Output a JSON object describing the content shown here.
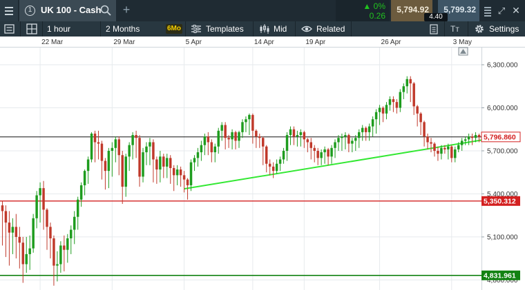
{
  "title_bar": {
    "instrument_name": "UK 100 - Cash",
    "info_icon": "1",
    "add_tab_icon": "+",
    "change_percent": "0%",
    "change_value": "0.26",
    "sell_price": "5,794.92",
    "buy_price": "5,799.32",
    "spread": "4.40",
    "expand_icon": "⤢",
    "close_icon": "✕"
  },
  "toolbar": {
    "interval": "1 hour",
    "range": "2 Months",
    "range_badge": "6Mo",
    "templates_label": "Templates",
    "price_type": "Mid",
    "related_label": "Related",
    "text_icon": "Tт",
    "settings_label": "Settings"
  },
  "colors": {
    "up_candle": "#1e9c1e",
    "down_candle": "#c0392b",
    "trendline": "#33e833",
    "resistance_line": "#d32020",
    "support_line": "#128212",
    "current_price_line": "#111111"
  },
  "chart_data": {
    "type": "candlestick",
    "x_tick_labels": [
      "22 Mar",
      "29 Mar",
      "5 Apr",
      "14 Apr",
      "19 Apr",
      "26 Apr",
      "3 May"
    ],
    "x_tick_index": [
      11,
      32,
      53,
      73,
      88,
      110,
      131
    ],
    "y_tick_labels": [
      "6,300.000",
      "6,000.000",
      "5,700.000",
      "5,400.000",
      "5,100.000",
      "4,800.000"
    ],
    "y_ticks": [
      6300,
      6000,
      5700,
      5400,
      5100,
      4800
    ],
    "ylim": [
      4730,
      6420
    ],
    "bar_count": 140,
    "closes": [
      5280,
      5200,
      5130,
      5170,
      5100,
      5060,
      4910,
      4980,
      5020,
      5230,
      5390,
      5440,
      5290,
      5170,
      5090,
      4900,
      4910,
      5040,
      5010,
      5090,
      5150,
      5240,
      5360,
      5460,
      5560,
      5640,
      5820,
      5760,
      5750,
      5630,
      5560,
      5700,
      5720,
      5780,
      5670,
      5450,
      5660,
      5740,
      5810,
      5790,
      5520,
      5690,
      5730,
      5760,
      5640,
      5570,
      5660,
      5590,
      5650,
      5580,
      5530,
      5570,
      5530,
      5500,
      5460,
      5620,
      5650,
      5690,
      5740,
      5800,
      5760,
      5690,
      5730,
      5840,
      5880,
      5790,
      5780,
      5830,
      5770,
      5830,
      5900,
      5920,
      5950,
      5840,
      5800,
      5790,
      5730,
      5610,
      5590,
      5560,
      5610,
      5640,
      5700,
      5810,
      5850,
      5800,
      5810,
      5830,
      5780,
      5760,
      5720,
      5700,
      5650,
      5690,
      5710,
      5660,
      5720,
      5760,
      5790,
      5800,
      5810,
      5750,
      5770,
      5790,
      5830,
      5860,
      5830,
      5870,
      5920,
      5970,
      6000,
      5960,
      6020,
      6060,
      6040,
      6000,
      6110,
      6150,
      6200,
      6170,
      6010,
      5960,
      5900,
      5800,
      5760,
      5750,
      5700,
      5680,
      5720,
      5710,
      5730,
      5650,
      5710,
      5740,
      5770,
      5780,
      5800,
      5790,
      5810,
      5797
    ],
    "lows": [
      5040,
      4960,
      4900,
      4980,
      4950,
      4880,
      4780,
      4850,
      4870,
      4990,
      5160,
      5200,
      5150,
      5010,
      4950,
      4760,
      4790,
      4850,
      4860,
      4920,
      4980,
      5050,
      5150,
      5310,
      5390,
      5470,
      5620,
      5620,
      5640,
      5500,
      5430,
      5440,
      5520,
      5620,
      5530,
      5330,
      5380,
      5560,
      5640,
      5650,
      5450,
      5480,
      5600,
      5600,
      5480,
      5470,
      5480,
      5510,
      5510,
      5470,
      5420,
      5460,
      5450,
      5410,
      5360,
      5420,
      5560,
      5590,
      5630,
      5670,
      5670,
      5620,
      5620,
      5680,
      5770,
      5710,
      5720,
      5710,
      5710,
      5720,
      5790,
      5830,
      5810,
      5750,
      5720,
      5720,
      5600,
      5550,
      5530,
      5510,
      5540,
      5560,
      5610,
      5630,
      5740,
      5740,
      5730,
      5730,
      5720,
      5690,
      5640,
      5620,
      5600,
      5600,
      5610,
      5600,
      5610,
      5650,
      5700,
      5700,
      5710,
      5690,
      5690,
      5700,
      5720,
      5770,
      5770,
      5770,
      5800,
      5820,
      5880,
      5900,
      5920,
      5980,
      5970,
      5960,
      5970,
      6060,
      6100,
      6040,
      5950,
      5870,
      5810,
      5730,
      5710,
      5690,
      5660,
      5630,
      5640,
      5680,
      5640,
      5620,
      5620,
      5690,
      5700,
      5740,
      5740,
      5740,
      5760,
      5760
    ],
    "highs": [
      5350,
      5320,
      5280,
      5230,
      5260,
      5170,
      5100,
      5100,
      5110,
      5260,
      5420,
      5480,
      5490,
      5300,
      5200,
      5110,
      5000,
      5070,
      5110,
      5120,
      5180,
      5280,
      5380,
      5480,
      5570,
      5660,
      5830,
      5840,
      5840,
      5770,
      5650,
      5720,
      5760,
      5800,
      5800,
      5700,
      5680,
      5760,
      5830,
      5840,
      5810,
      5720,
      5760,
      5790,
      5780,
      5660,
      5700,
      5680,
      5680,
      5670,
      5600,
      5600,
      5590,
      5560,
      5510,
      5640,
      5670,
      5720,
      5770,
      5820,
      5830,
      5780,
      5750,
      5860,
      5900,
      5900,
      5810,
      5850,
      5840,
      5840,
      5920,
      5940,
      5960,
      5960,
      5850,
      5820,
      5800,
      5740,
      5640,
      5620,
      5640,
      5660,
      5720,
      5830,
      5870,
      5870,
      5840,
      5850,
      5840,
      5790,
      5790,
      5740,
      5720,
      5710,
      5730,
      5720,
      5740,
      5780,
      5810,
      5820,
      5830,
      5820,
      5790,
      5810,
      5850,
      5880,
      5870,
      5890,
      5940,
      5990,
      6020,
      6010,
      6040,
      6080,
      6080,
      6060,
      6130,
      6170,
      6220,
      6220,
      6180,
      6020,
      5970,
      5910,
      5820,
      5790,
      5760,
      5730,
      5740,
      5740,
      5750,
      5740,
      5730,
      5760,
      5790,
      5800,
      5820,
      5820,
      5830,
      5820
    ],
    "current_price": 5796.86,
    "current_price_label": "5,796.860",
    "resistance_level": 5350.312,
    "resistance_label": "5,350.312",
    "support_level": 4831.961,
    "support_label": "4,831.961",
    "trendline": {
      "from": {
        "index": 53,
        "value": 5435
      },
      "to": {
        "index": 140,
        "value": 5775
      }
    }
  }
}
